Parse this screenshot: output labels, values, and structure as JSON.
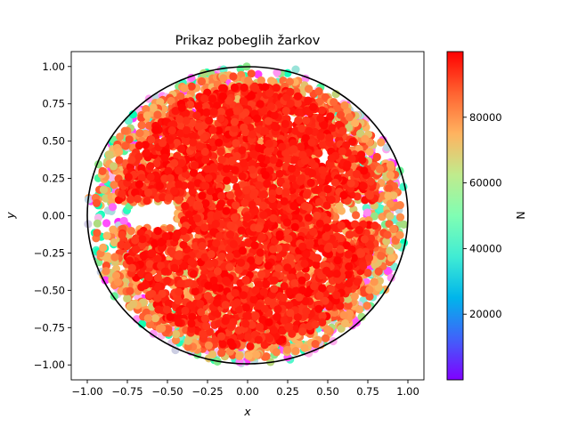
{
  "chart_data": {
    "type": "scatter",
    "title": "Prikaz pobeglih žarkov",
    "xlabel": "x",
    "ylabel": "y",
    "xlim": [
      -1.1,
      1.1
    ],
    "ylim": [
      -1.1,
      1.1
    ],
    "xticks": [
      -1.0,
      -0.75,
      -0.5,
      -0.25,
      0.0,
      0.25,
      0.5,
      0.75,
      1.0
    ],
    "yticks": [
      -1.0,
      -0.75,
      -0.5,
      -0.25,
      0.0,
      0.25,
      0.5,
      0.75,
      1.0
    ],
    "xtick_labels": [
      "−1.00",
      "−0.75",
      "−0.50",
      "−0.25",
      "0.00",
      "0.25",
      "0.50",
      "0.75",
      "1.00"
    ],
    "ytick_labels": [
      "−1.00",
      "−0.75",
      "−0.50",
      "−0.25",
      "0.00",
      "0.25",
      "0.50",
      "0.75",
      "1.00"
    ],
    "grid": false,
    "circle": {
      "center": [
        0,
        0
      ],
      "radius": 1.0,
      "color": "#000000"
    },
    "colormap": "rainbow",
    "colorbar": {
      "label": "N",
      "range": [
        0,
        100000
      ],
      "ticks": [
        20000,
        40000,
        60000,
        80000
      ],
      "tick_labels": [
        "20000",
        "40000",
        "60000",
        "80000"
      ]
    },
    "points_sample": [
      {
        "x": -0.9,
        "y": 0.18,
        "n": 12000
      },
      {
        "x": -0.85,
        "y": 0.32,
        "n": 8000
      },
      {
        "x": -0.88,
        "y": -0.05,
        "n": 10000
      },
      {
        "x": -0.78,
        "y": -0.1,
        "n": 15000
      },
      {
        "x": -0.68,
        "y": -0.15,
        "n": 9000
      },
      {
        "x": -0.55,
        "y": 0.55,
        "n": 7000
      },
      {
        "x": -0.72,
        "y": 0.33,
        "n": 22000
      },
      {
        "x": -0.6,
        "y": -0.68,
        "n": 18000
      },
      {
        "x": -0.45,
        "y": -0.9,
        "n": 30000
      },
      {
        "x": 0.25,
        "y": -0.95,
        "n": 11000
      },
      {
        "x": 0.65,
        "y": -0.45,
        "n": 14000
      },
      {
        "x": 0.72,
        "y": 0.12,
        "n": 20000
      },
      {
        "x": 0.82,
        "y": -0.32,
        "n": 9000
      },
      {
        "x": 0.6,
        "y": 0.75,
        "n": 25000
      },
      {
        "x": 0.3,
        "y": 0.98,
        "n": 35000
      },
      {
        "x": -0.15,
        "y": 0.98,
        "n": 40000
      },
      {
        "x": -0.78,
        "y": -0.5,
        "n": 45000
      },
      {
        "x": 0.88,
        "y": 0.2,
        "n": 50000
      },
      {
        "x": -0.05,
        "y": -0.98,
        "n": 16000
      },
      {
        "x": 0.45,
        "y": -0.85,
        "n": 28000
      }
    ]
  }
}
